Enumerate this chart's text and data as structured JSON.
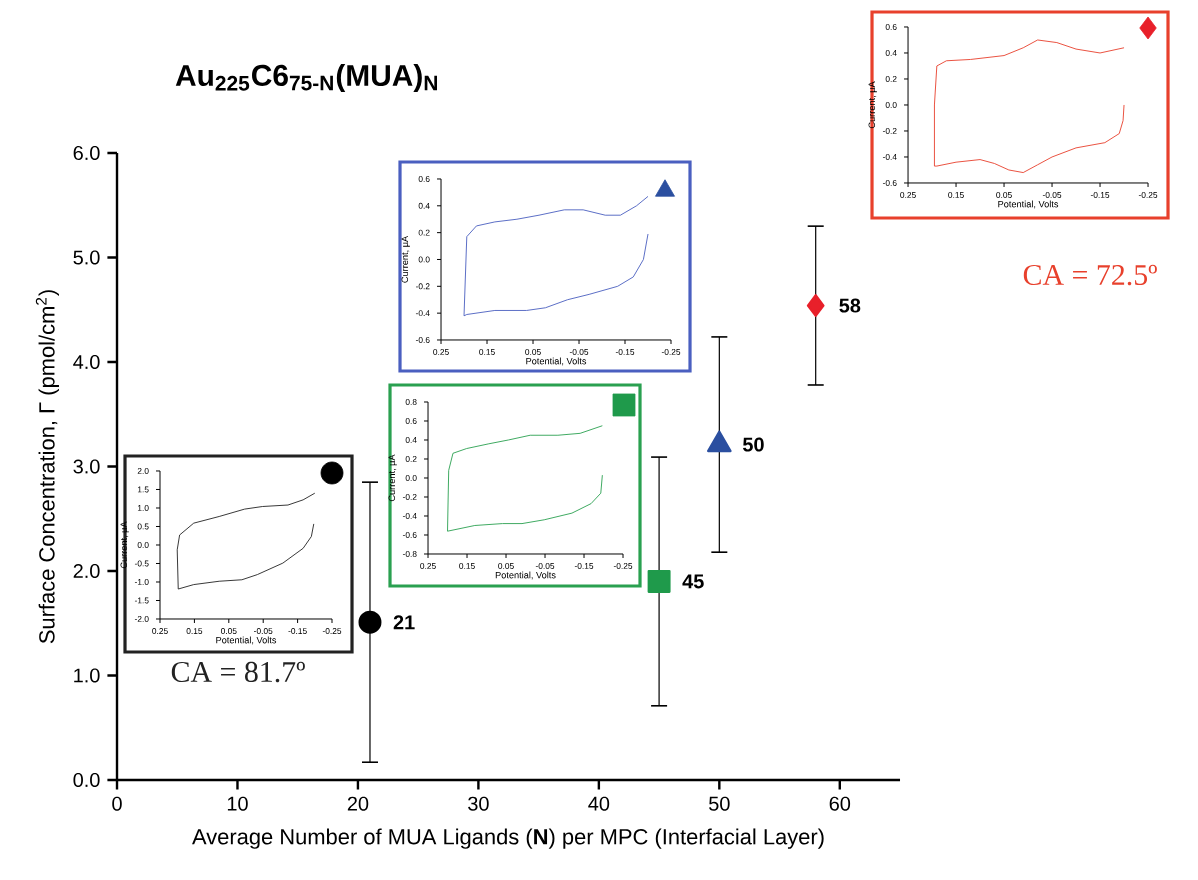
{
  "chart_data": [
    {
      "type": "scatter",
      "title": "Au$_{225}$C6$_{75-N}$(MUA)$_{N}$",
      "xlabel": "Average Number of MUA Ligands (**N**) per MPC (Interfacial Layer)",
      "ylabel": "Surface Concentration, Γ (pmol/cm$^{2}$)",
      "xlim": [
        0,
        65
      ],
      "xticks": [
        0,
        10,
        20,
        30,
        40,
        50,
        60
      ],
      "ylim": [
        0,
        6
      ],
      "yticks": [
        {
          "value": 0,
          "label": "0.0"
        },
        {
          "value": 1,
          "label": "1.0"
        },
        {
          "value": 2,
          "label": "2.0"
        },
        {
          "value": 3,
          "label": "3.0"
        },
        {
          "value": 4,
          "label": "4.0"
        },
        {
          "value": 5,
          "label": "5.0"
        },
        {
          "value": 6,
          "label": "6.0"
        }
      ],
      "series": [
        {
          "x": [
            21
          ],
          "values": [
            1.51
          ],
          "errors": [
            1.34
          ],
          "color": "#000000",
          "marker": "circle"
        },
        {
          "x": [
            45
          ],
          "values": [
            1.9
          ],
          "errors": [
            1.19
          ],
          "color": "#1f9a4b",
          "marker": "square"
        },
        {
          "x": [
            50
          ],
          "values": [
            3.21
          ],
          "errors": [
            1.03
          ],
          "color": "#2b4fa0",
          "marker": "triangle"
        },
        {
          "x": [
            58
          ],
          "values": [
            4.54
          ],
          "errors": [
            0.76
          ],
          "color": "#e8202a",
          "marker": "diamond"
        }
      ],
      "annotations": [
        {
          "text": "21",
          "x": 21,
          "y": 1.51
        },
        {
          "text": "45",
          "x": 45,
          "y": 1.9
        },
        {
          "text": "50",
          "x": 50,
          "y": 3.21
        },
        {
          "text": "58",
          "x": 58,
          "y": 4.54
        }
      ]
    },
    {
      "type": "line",
      "xlabel": "Potential, Volts",
      "ylabel": "Current, µA",
      "xlim": [
        0.25,
        -0.25
      ],
      "xticks": [
        0.25,
        0.15,
        0.05,
        -0.05,
        -0.15,
        -0.25
      ],
      "ylim": [
        -0.6,
        0.6
      ],
      "yticks": [
        -0.6,
        -0.4,
        -0.2,
        {
          "value": 0,
          "label": "0.0"
        },
        0.2,
        0.4,
        0.6
      ],
      "annotations": [
        "CA = 72.5º"
      ],
      "series": [
        {
          "color": "#e8402c",
          "x": [
            -0.2,
            -0.198,
            -0.19,
            -0.16,
            -0.1,
            -0.05,
            -0.02,
            0.01,
            0.04,
            0.07,
            0.1,
            0.15,
            0.19,
            0.195,
            0.195,
            0.19,
            0.17,
            0.12,
            0.05,
            0.01,
            -0.02,
            -0.06,
            -0.1,
            -0.15,
            -0.2
          ],
          "values": [
            0.0,
            -0.12,
            -0.22,
            -0.29,
            -0.33,
            -0.4,
            -0.46,
            -0.52,
            -0.5,
            -0.45,
            -0.42,
            -0.44,
            -0.47,
            -0.47,
            0.0,
            0.3,
            0.34,
            0.35,
            0.38,
            0.44,
            0.5,
            0.48,
            0.43,
            0.4,
            0.44
          ]
        }
      ]
    },
    {
      "type": "line",
      "xlabel": "Potential, Volts",
      "ylabel": "Current, µA",
      "xlim": [
        0.25,
        -0.25
      ],
      "xticks": [
        0.25,
        0.15,
        0.05,
        -0.05,
        -0.15,
        -0.25
      ],
      "ylim": [
        -0.6,
        0.6
      ],
      "yticks": [
        -0.6,
        -0.4,
        -0.2,
        {
          "value": 0,
          "label": "0.0"
        },
        0.2,
        0.4,
        0.6
      ],
      "series": [
        {
          "color": "#4a5fc0",
          "x": [
            -0.2,
            -0.19,
            -0.168,
            -0.134,
            -0.072,
            -0.025,
            0.023,
            0.064,
            0.133,
            0.194,
            0.2,
            0.194,
            0.173,
            0.133,
            0.085,
            0.037,
            -0.018,
            -0.059,
            -0.107,
            -0.14,
            -0.175,
            -0.2
          ],
          "values": [
            0.19,
            0.0,
            -0.13,
            -0.2,
            -0.26,
            -0.3,
            -0.36,
            -0.38,
            -0.38,
            -0.41,
            -0.42,
            0.17,
            0.25,
            0.28,
            0.3,
            0.33,
            0.37,
            0.37,
            0.33,
            0.33,
            0.4,
            0.47
          ]
        }
      ]
    },
    {
      "type": "line",
      "xlabel": "Potential, Volts",
      "ylabel": "Current, µA",
      "xlim": [
        0.25,
        -0.25
      ],
      "xticks": [
        0.25,
        0.15,
        0.05,
        -0.05,
        -0.15,
        -0.25
      ],
      "ylim": [
        -0.8,
        0.8
      ],
      "yticks": [
        -0.8,
        -0.6,
        -0.4,
        -0.2,
        {
          "value": 0,
          "label": "0.0"
        },
        0.2,
        0.4,
        0.6,
        0.8
      ],
      "series": [
        {
          "color": "#2aa050",
          "x": [
            -0.197,
            -0.193,
            -0.168,
            -0.119,
            -0.048,
            0.009,
            0.059,
            0.13,
            0.2,
            0.197,
            0.186,
            0.151,
            0.094,
            0.044,
            -0.012,
            -0.083,
            -0.14,
            -0.197
          ],
          "values": [
            0.03,
            -0.16,
            -0.27,
            -0.37,
            -0.44,
            -0.48,
            -0.48,
            -0.5,
            -0.56,
            0.08,
            0.26,
            0.31,
            0.36,
            0.4,
            0.45,
            0.45,
            0.47,
            0.55
          ]
        }
      ]
    },
    {
      "type": "line",
      "xlabel": "Potential, Volts",
      "ylabel": "Current, µA",
      "xlim": [
        0.25,
        -0.25
      ],
      "xticks": [
        0.25,
        0.15,
        0.05,
        -0.05,
        -0.15,
        -0.25
      ],
      "ylim": [
        -2,
        2
      ],
      "yticks": [
        {
          "value": -2,
          "label": "-2.0"
        },
        -1.5,
        {
          "value": -1,
          "label": "-1.0"
        },
        -0.5,
        {
          "value": 0,
          "label": "0.0"
        },
        0.5,
        {
          "value": 1,
          "label": "1.0"
        },
        1.5,
        {
          "value": 2,
          "label": "2.0"
        }
      ],
      "annotations": [
        "CA = 81.7º"
      ],
      "series": [
        {
          "color": "#222222",
          "x": [
            -0.197,
            -0.19,
            -0.166,
            -0.107,
            -0.033,
            0.012,
            0.078,
            0.152,
            0.197,
            0.2,
            0.193,
            0.152,
            0.078,
            0.004,
            -0.048,
            -0.122,
            -0.166,
            -0.2
          ],
          "values": [
            0.57,
            0.23,
            -0.09,
            -0.49,
            -0.8,
            -0.94,
            -0.98,
            -1.07,
            -1.19,
            -0.13,
            0.27,
            0.59,
            0.77,
            0.97,
            1.04,
            1.08,
            1.22,
            1.4
          ]
        }
      ]
    }
  ]
}
